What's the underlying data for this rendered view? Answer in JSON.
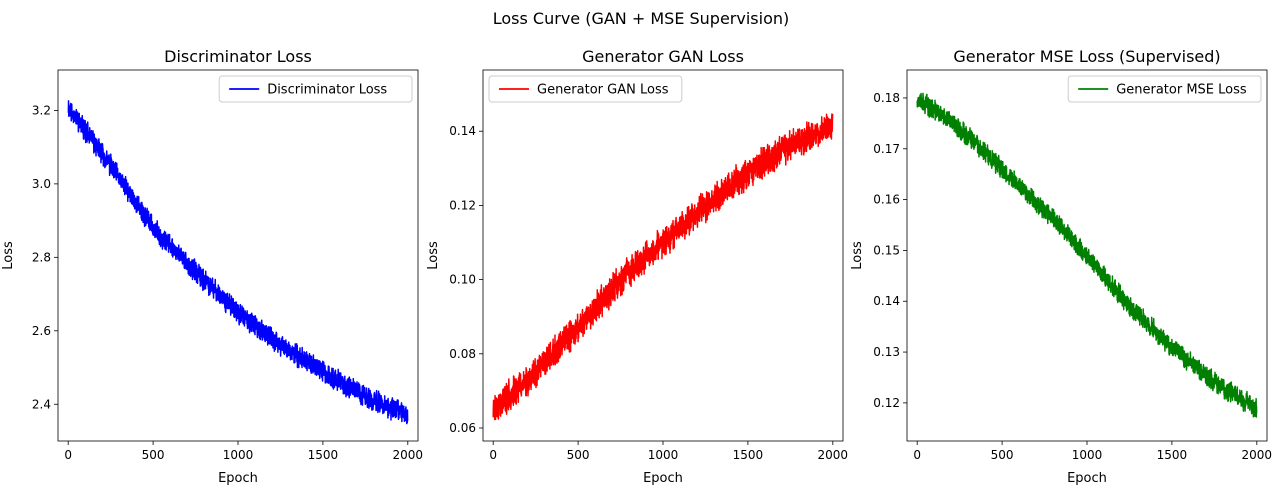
{
  "figure": {
    "suptitle": "Loss Curve (GAN + MSE Supervision)"
  },
  "chart_data": [
    {
      "type": "line",
      "title": "Discriminator Loss",
      "xlabel": "Epoch",
      "ylabel": "Loss",
      "xlim": [
        -60,
        2060
      ],
      "ylim": [
        2.3,
        3.31
      ],
      "xticks": [
        0,
        500,
        1000,
        1500,
        2000
      ],
      "yticks": [
        2.4,
        2.6,
        2.8,
        3.0,
        3.2
      ],
      "ytick_labels": [
        "2.4",
        "2.6",
        "2.8",
        "3.0",
        "3.2"
      ],
      "legend_position": "upper-right",
      "series": [
        {
          "name": "Discriminator Loss",
          "color": "#0000ff",
          "n_points": 2000,
          "trend_points": [
            [
              0,
              3.21
            ],
            [
              250,
              3.05
            ],
            [
              500,
              2.88
            ],
            [
              750,
              2.76
            ],
            [
              1000,
              2.65
            ],
            [
              1250,
              2.56
            ],
            [
              1500,
              2.49
            ],
            [
              1750,
              2.42
            ],
            [
              2000,
              2.37
            ]
          ],
          "noise": 0.022,
          "seed": 11
        }
      ]
    },
    {
      "type": "line",
      "title": "Generator GAN Loss",
      "xlabel": "Epoch",
      "ylabel": "Loss",
      "xlim": [
        -60,
        2060
      ],
      "ylim": [
        0.0565,
        0.1565
      ],
      "xticks": [
        0,
        500,
        1000,
        1500,
        2000
      ],
      "yticks": [
        0.06,
        0.08,
        0.1,
        0.12,
        0.14
      ],
      "ytick_labels": [
        "0.06",
        "0.08",
        "0.10",
        "0.12",
        "0.14"
      ],
      "legend_position": "upper-left",
      "series": [
        {
          "name": "Generator GAN Loss",
          "color": "#ff0000",
          "n_points": 2000,
          "trend_points": [
            [
              0,
              0.065
            ],
            [
              250,
              0.075
            ],
            [
              500,
              0.087
            ],
            [
              750,
              0.1
            ],
            [
              1000,
              0.11
            ],
            [
              1250,
              0.12
            ],
            [
              1500,
              0.129
            ],
            [
              1750,
              0.136
            ],
            [
              2000,
              0.142
            ]
          ],
          "noise": 0.0032,
          "seed": 23
        }
      ]
    },
    {
      "type": "line",
      "title": "Generator MSE Loss (Supervised)",
      "xlabel": "Epoch",
      "ylabel": "Loss",
      "xlim": [
        -60,
        2060
      ],
      "ylim": [
        0.1125,
        0.1855
      ],
      "xticks": [
        0,
        500,
        1000,
        1500,
        2000
      ],
      "yticks": [
        0.12,
        0.13,
        0.14,
        0.15,
        0.16,
        0.17,
        0.18
      ],
      "ytick_labels": [
        "0.12",
        "0.13",
        "0.14",
        "0.15",
        "0.16",
        "0.17",
        "0.18"
      ],
      "legend_position": "upper-right",
      "series": [
        {
          "name": "Generator MSE Loss",
          "color": "#008000",
          "n_points": 2000,
          "trend_points": [
            [
              0,
              0.18
            ],
            [
              250,
              0.174
            ],
            [
              500,
              0.166
            ],
            [
              750,
              0.158
            ],
            [
              1000,
              0.149
            ],
            [
              1250,
              0.139
            ],
            [
              1500,
              0.131
            ],
            [
              1750,
              0.124
            ],
            [
              2000,
              0.119
            ]
          ],
          "noise": 0.0015,
          "seed": 37
        }
      ]
    }
  ]
}
